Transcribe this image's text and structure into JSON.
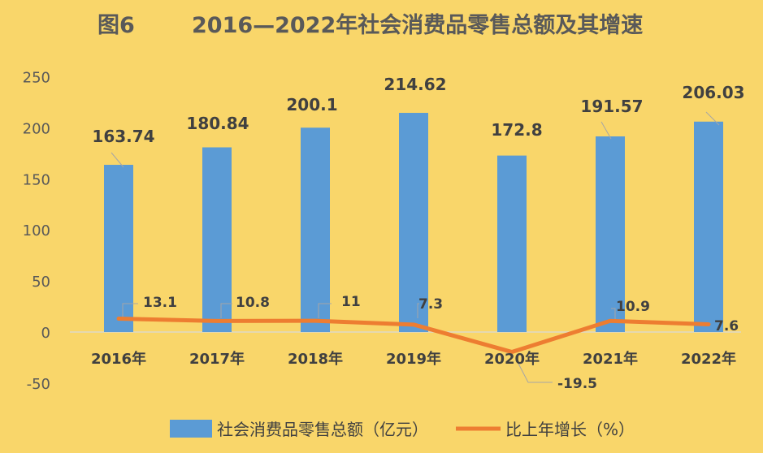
{
  "chart_data": {
    "type": "bar",
    "title_prefix": "图6",
    "title": "2016—2022年社会消费品零售总额及其增速",
    "categories": [
      "2016年",
      "2017年",
      "2018年",
      "2019年",
      "2020年",
      "2021年",
      "2022年"
    ],
    "series": [
      {
        "name": "社会消费品零售总额（亿元）",
        "type": "bar",
        "color": "#5B9BD5",
        "values": [
          163.74,
          180.84,
          200.1,
          214.62,
          172.8,
          191.57,
          206.03
        ],
        "labels": [
          "163.74",
          "180.84",
          "200.1",
          "214.62",
          "172.8",
          "191.57",
          "206.03"
        ]
      },
      {
        "name": "比上年增长（%）",
        "type": "line",
        "color": "#ED7D31",
        "values": [
          13.1,
          10.8,
          11,
          7.3,
          -19.5,
          10.9,
          7.6
        ],
        "labels": [
          "13.1",
          "10.8",
          "11",
          "7.3",
          "-19.5",
          "10.9",
          "7.6"
        ]
      }
    ],
    "ylim": [
      -50,
      250
    ],
    "yticks": [
      "250",
      "200",
      "150",
      "100",
      "50",
      "0",
      "-50"
    ],
    "ytick_values": [
      250,
      200,
      150,
      100,
      50,
      0,
      -50
    ],
    "legend": "bottom",
    "grid": false
  }
}
